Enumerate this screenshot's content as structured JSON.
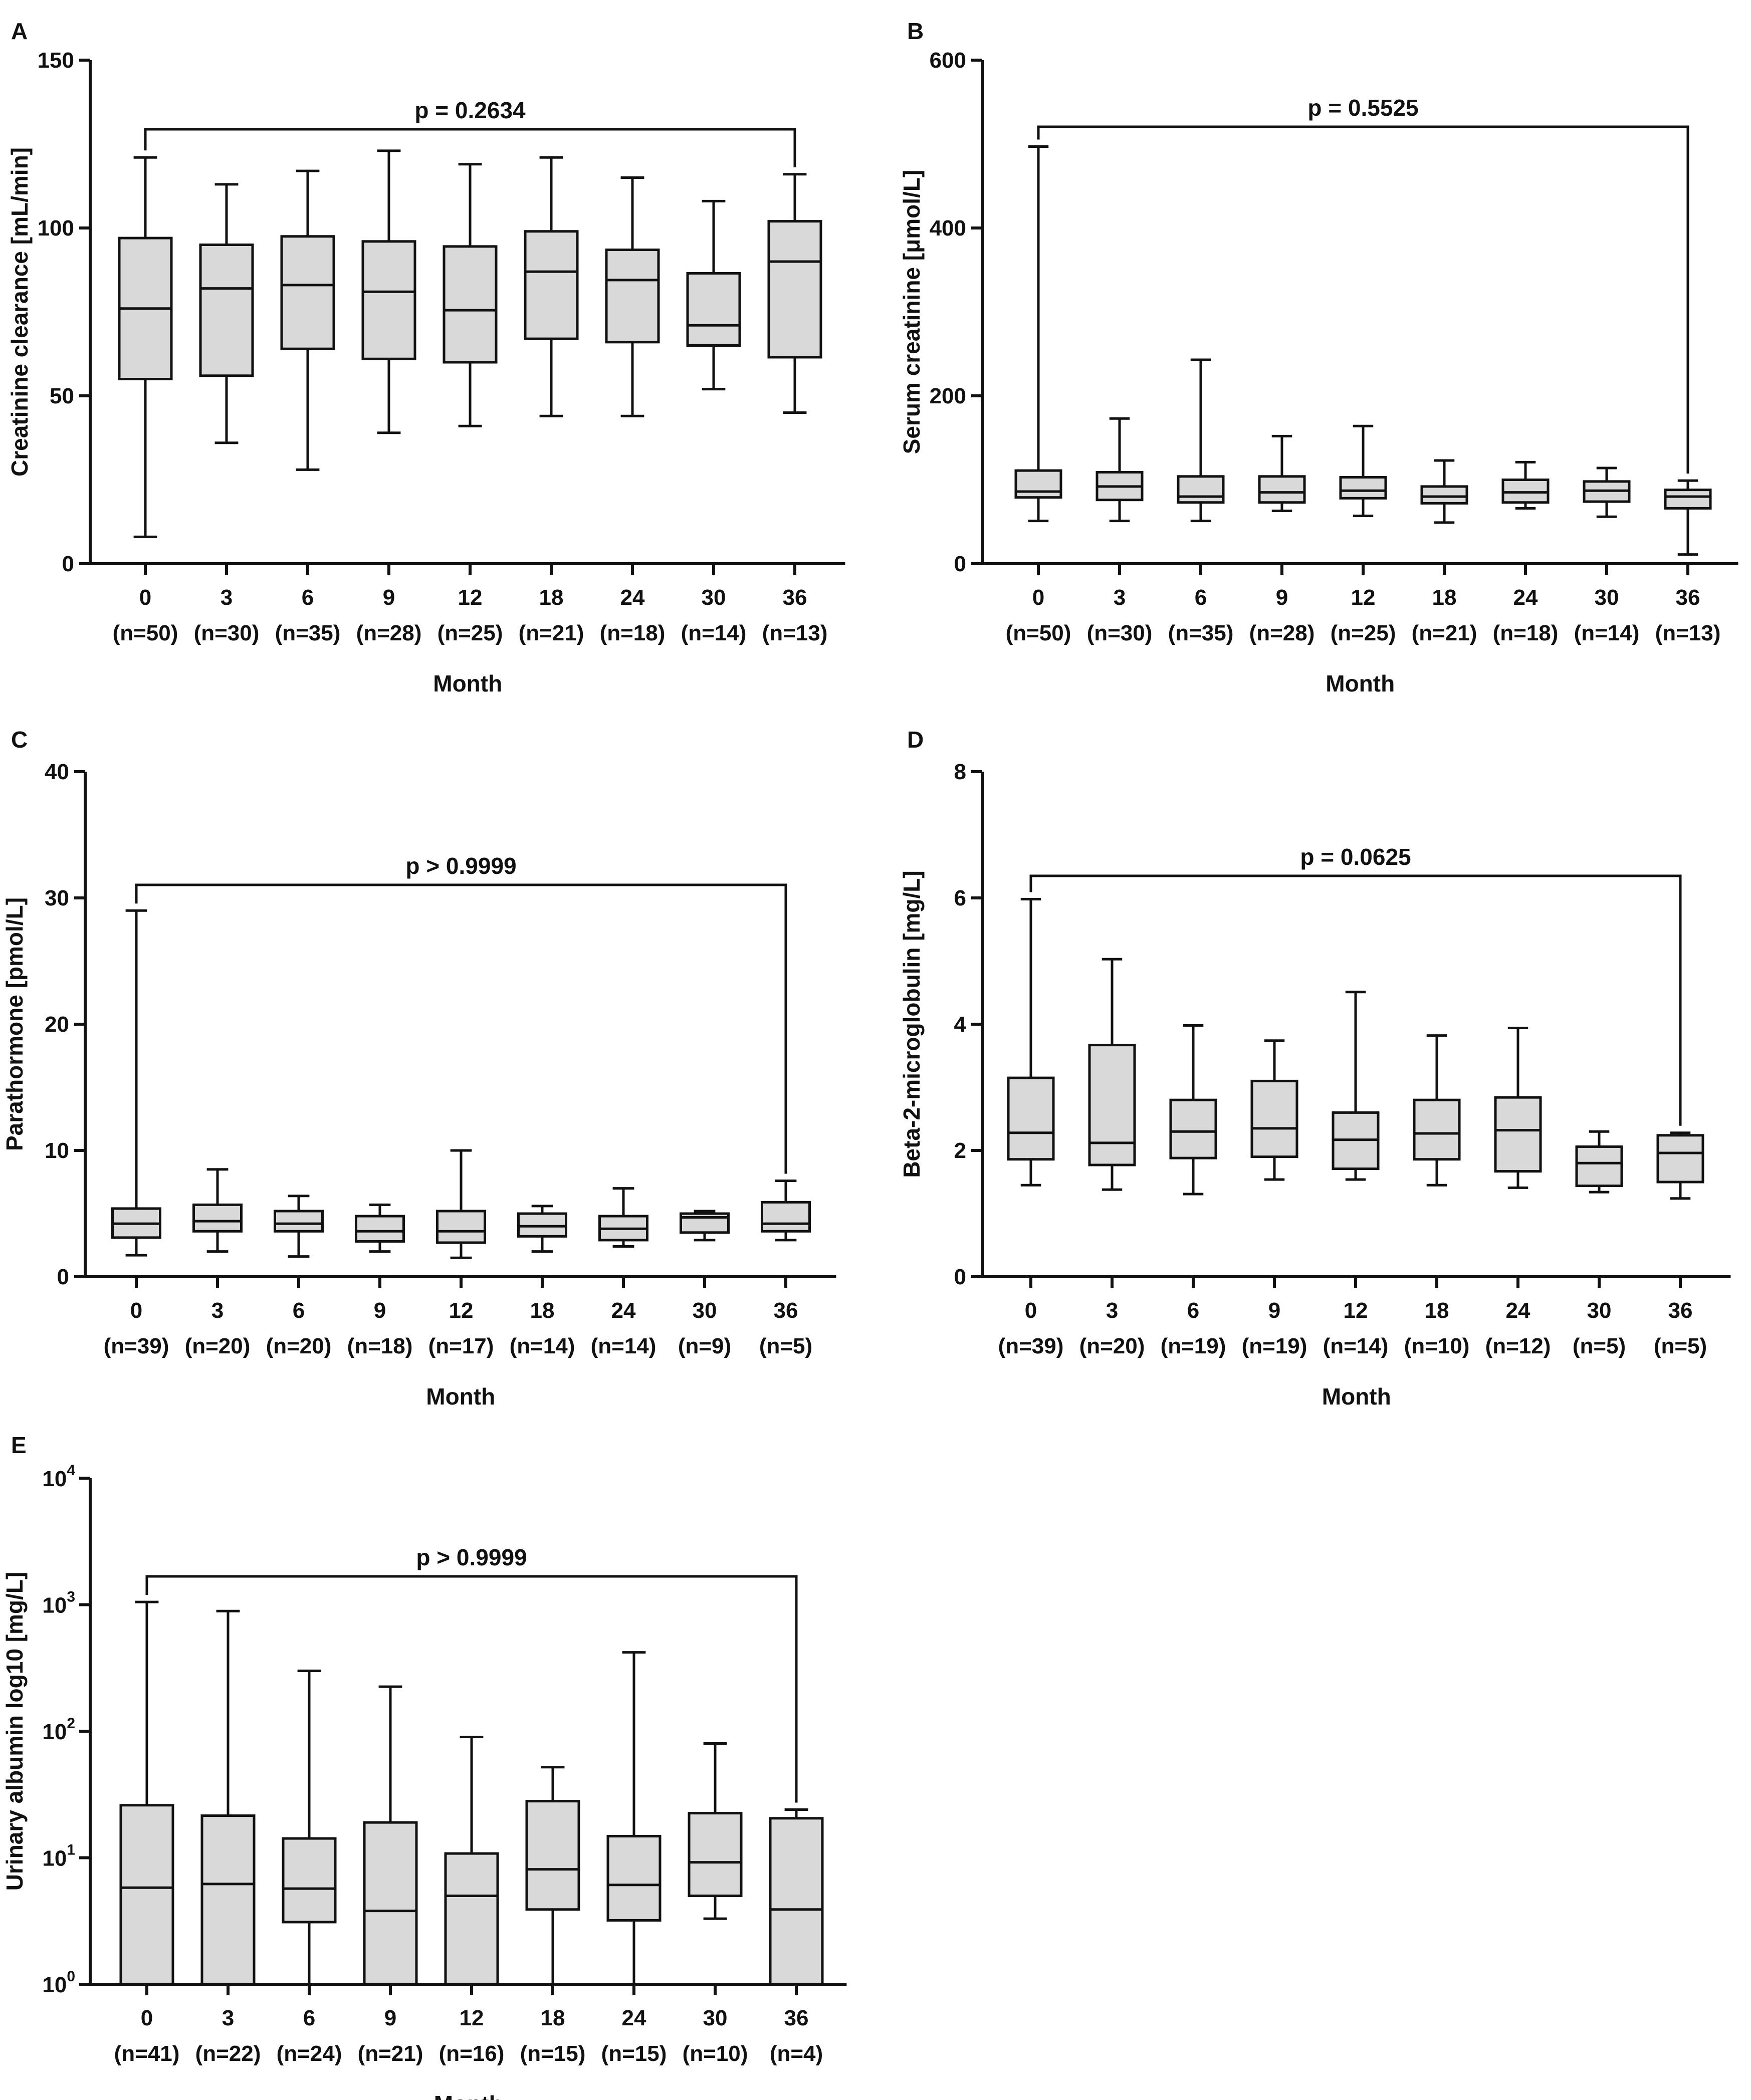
{
  "chart_data": [
    {
      "type": "box",
      "panel": "A",
      "ylabel": "Creatinine clearance [mL/min]",
      "xlabel": "Month",
      "yscale": "linear",
      "ylim": [
        0,
        150
      ],
      "yticks": [
        0,
        50,
        100,
        150
      ],
      "categories": [
        "0",
        "3",
        "6",
        "9",
        "12",
        "18",
        "24",
        "30",
        "36"
      ],
      "n_labels": [
        "(n=50)",
        "(n=30)",
        "(n=35)",
        "(n=28)",
        "(n=25)",
        "(n=21)",
        "(n=18)",
        "(n=14)",
        "(n=13)"
      ],
      "p_value": "p = 0.2634",
      "bracket_ends": [
        121,
        116
      ],
      "series": [
        {
          "min": 8,
          "q1": 55,
          "median": 76,
          "q3": 97,
          "max": 121
        },
        {
          "min": 36,
          "q1": 56,
          "median": 82,
          "q3": 95,
          "max": 113
        },
        {
          "min": 28,
          "q1": 64,
          "median": 83,
          "q3": 97.5,
          "max": 117
        },
        {
          "min": 39,
          "q1": 61,
          "median": 81,
          "q3": 96,
          "max": 123
        },
        {
          "min": 41,
          "q1": 60,
          "median": 75.5,
          "q3": 94.5,
          "max": 119
        },
        {
          "min": 44,
          "q1": 67,
          "median": 87,
          "q3": 99,
          "max": 121
        },
        {
          "min": 44,
          "q1": 66,
          "median": 84.5,
          "q3": 93.5,
          "max": 115
        },
        {
          "min": 52,
          "q1": 65,
          "median": 71,
          "q3": 86.5,
          "max": 108
        },
        {
          "min": 45,
          "q1": 61.5,
          "median": 90,
          "q3": 102,
          "max": 116
        }
      ]
    },
    {
      "type": "box",
      "panel": "B",
      "ylabel": "Serum creatinine [μmol/L]",
      "xlabel": "Month",
      "yscale": "linear",
      "ylim": [
        0,
        600
      ],
      "yticks": [
        0,
        200,
        400,
        600
      ],
      "categories": [
        "0",
        "3",
        "6",
        "9",
        "12",
        "18",
        "24",
        "30",
        "36"
      ],
      "n_labels": [
        "(n=50)",
        "(n=30)",
        "(n=35)",
        "(n=28)",
        "(n=25)",
        "(n=21)",
        "(n=18)",
        "(n=14)",
        "(n=13)"
      ],
      "p_value": "p = 0.5525",
      "bracket_ends": [
        497,
        99
      ],
      "series": [
        {
          "min": 51,
          "q1": 79,
          "median": 86,
          "q3": 111,
          "max": 497
        },
        {
          "min": 51,
          "q1": 76,
          "median": 92,
          "q3": 109,
          "max": 173
        },
        {
          "min": 51,
          "q1": 73,
          "median": 80,
          "q3": 104,
          "max": 243
        },
        {
          "min": 63,
          "q1": 73,
          "median": 85,
          "q3": 104,
          "max": 152
        },
        {
          "min": 57,
          "q1": 78,
          "median": 87,
          "q3": 103,
          "max": 164
        },
        {
          "min": 49,
          "q1": 72,
          "median": 80,
          "q3": 92,
          "max": 123
        },
        {
          "min": 66,
          "q1": 73,
          "median": 85,
          "q3": 100,
          "max": 121
        },
        {
          "min": 56,
          "q1": 74,
          "median": 87,
          "q3": 98,
          "max": 114
        },
        {
          "min": 11,
          "q1": 66,
          "median": 80,
          "q3": 88,
          "max": 99
        }
      ]
    },
    {
      "type": "box",
      "panel": "C",
      "ylabel": "Parathormone [pmol/L]",
      "xlabel": "Month",
      "yscale": "linear",
      "ylim": [
        0,
        40
      ],
      "yticks": [
        0,
        10,
        20,
        30,
        40
      ],
      "categories": [
        "0",
        "3",
        "6",
        "9",
        "12",
        "18",
        "24",
        "30",
        "36"
      ],
      "n_labels": [
        "(n=39)",
        "(n=20)",
        "(n=20)",
        "(n=18)",
        "(n=17)",
        "(n=14)",
        "(n=14)",
        "(n=9)",
        "(n=5)"
      ],
      "p_value": "p > 0.9999",
      "bracket_ends": [
        29,
        7.6
      ],
      "series": [
        {
          "min": 1.7,
          "q1": 3.1,
          "median": 4.2,
          "q3": 5.4,
          "max": 29
        },
        {
          "min": 2.0,
          "q1": 3.6,
          "median": 4.4,
          "q3": 5.7,
          "max": 8.5
        },
        {
          "min": 1.6,
          "q1": 3.6,
          "median": 4.2,
          "q3": 5.2,
          "max": 6.4
        },
        {
          "min": 2.0,
          "q1": 2.8,
          "median": 3.6,
          "q3": 4.8,
          "max": 5.7
        },
        {
          "min": 1.5,
          "q1": 2.7,
          "median": 3.6,
          "q3": 5.2,
          "max": 10.0
        },
        {
          "min": 2.0,
          "q1": 3.2,
          "median": 4.0,
          "q3": 5.0,
          "max": 5.6
        },
        {
          "min": 2.4,
          "q1": 2.9,
          "median": 3.8,
          "q3": 4.8,
          "max": 7.0
        },
        {
          "min": 2.9,
          "q1": 3.5,
          "median": 4.7,
          "q3": 5.0,
          "max": 5.2
        },
        {
          "min": 2.9,
          "q1": 3.6,
          "median": 4.2,
          "q3": 5.9,
          "max": 7.6
        }
      ]
    },
    {
      "type": "box",
      "panel": "D",
      "ylabel": "Beta-2-microglobulin [mg/L]",
      "xlabel": "Month",
      "yscale": "linear",
      "ylim": [
        0,
        8
      ],
      "yticks": [
        0,
        2,
        4,
        6,
        8
      ],
      "categories": [
        "0",
        "3",
        "6",
        "9",
        "12",
        "18",
        "24",
        "30",
        "36"
      ],
      "n_labels": [
        "(n=39)",
        "(n=20)",
        "(n=19)",
        "(n=19)",
        "(n=14)",
        "(n=10)",
        "(n=12)",
        "(n=5)",
        "(n=5)"
      ],
      "p_value": "p = 0.0625",
      "bracket_ends": [
        5.98,
        2.28
      ],
      "series": [
        {
          "min": 1.45,
          "q1": 1.86,
          "median": 2.28,
          "q3": 3.15,
          "max": 5.98
        },
        {
          "min": 1.38,
          "q1": 1.77,
          "median": 2.12,
          "q3": 3.67,
          "max": 5.03
        },
        {
          "min": 1.31,
          "q1": 1.88,
          "median": 2.3,
          "q3": 2.8,
          "max": 3.98
        },
        {
          "min": 1.54,
          "q1": 1.9,
          "median": 2.35,
          "q3": 3.1,
          "max": 3.74
        },
        {
          "min": 1.54,
          "q1": 1.71,
          "median": 2.17,
          "q3": 2.6,
          "max": 4.51
        },
        {
          "min": 1.45,
          "q1": 1.86,
          "median": 2.27,
          "q3": 2.8,
          "max": 3.82
        },
        {
          "min": 1.41,
          "q1": 1.67,
          "median": 2.32,
          "q3": 2.84,
          "max": 3.94
        },
        {
          "min": 1.34,
          "q1": 1.44,
          "median": 1.8,
          "q3": 2.06,
          "max": 2.3
        },
        {
          "min": 1.24,
          "q1": 1.5,
          "median": 1.96,
          "q3": 2.24,
          "max": 2.28
        }
      ]
    },
    {
      "type": "box",
      "panel": "E",
      "ylabel": "Urinary albumin log10 [mg/L]",
      "xlabel": "Month",
      "yscale": "log10",
      "ylim": [
        1,
        10000
      ],
      "yticks": [
        1,
        10,
        100,
        1000,
        10000
      ],
      "ytick_base": "10",
      "ytick_exponents": [
        "0",
        "1",
        "2",
        "3",
        "4"
      ],
      "categories": [
        "0",
        "3",
        "6",
        "9",
        "12",
        "18",
        "24",
        "30",
        "36"
      ],
      "n_labels": [
        "(n=41)",
        "(n=22)",
        "(n=24)",
        "(n=21)",
        "(n=16)",
        "(n=15)",
        "(n=15)",
        "(n=10)",
        "(n=4)"
      ],
      "p_value": "p > 0.9999",
      "bracket_ends": [
        1050,
        24
      ],
      "series": [
        {
          "min": 1,
          "q1": 1,
          "median": 5.8,
          "q3": 26,
          "max": 1050
        },
        {
          "min": 1,
          "q1": 1,
          "median": 6.2,
          "q3": 21.5,
          "max": 890
        },
        {
          "min": 1,
          "q1": 3.1,
          "median": 5.7,
          "q3": 14.2,
          "max": 300
        },
        {
          "min": 1,
          "q1": 1,
          "median": 3.8,
          "q3": 19,
          "max": 225
        },
        {
          "min": 1,
          "q1": 1,
          "median": 5.0,
          "q3": 10.8,
          "max": 90
        },
        {
          "min": 1,
          "q1": 3.9,
          "median": 8.1,
          "q3": 28,
          "max": 52
        },
        {
          "min": 1,
          "q1": 3.2,
          "median": 6.1,
          "q3": 14.8,
          "max": 420
        },
        {
          "min": 3.3,
          "q1": 5.0,
          "median": 9.2,
          "q3": 22.5,
          "max": 80
        },
        {
          "min": 1,
          "q1": 1,
          "median": 3.9,
          "q3": 20.5,
          "max": 24
        }
      ]
    }
  ]
}
